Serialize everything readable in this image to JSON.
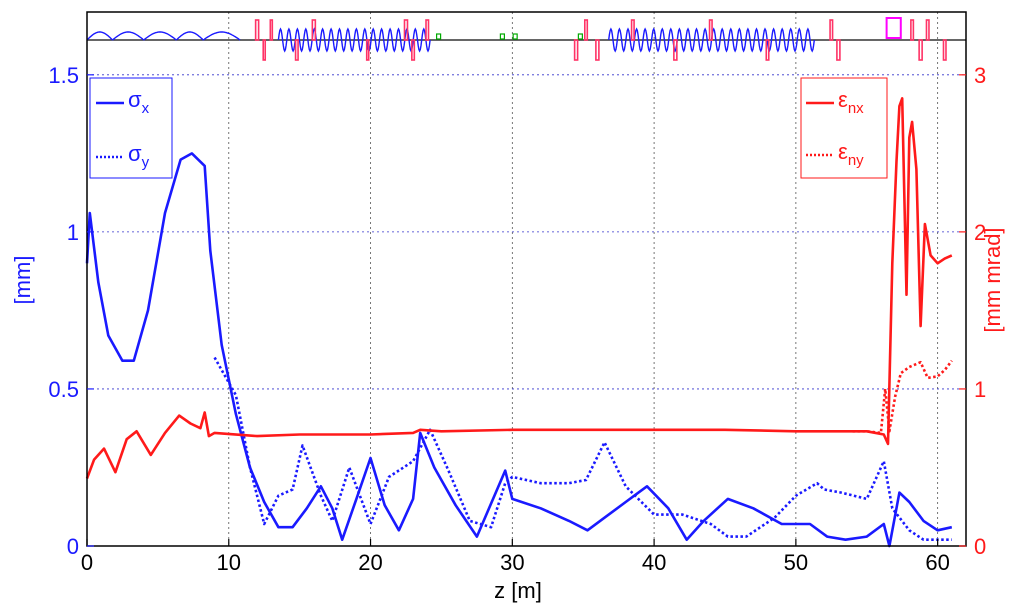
{
  "chart_data": {
    "type": "line",
    "xlabel": "z [m]",
    "ylabel_left": "[mm]",
    "ylabel_right": "[mm mrad]",
    "xlim": [
      0,
      62
    ],
    "ylim_left": [
      0,
      1.7
    ],
    "ylim_right": [
      0,
      3.4
    ],
    "x_ticks": [
      0,
      10,
      20,
      30,
      40,
      50,
      60
    ],
    "x_tick_labels": [
      "0",
      "10",
      "20",
      "30",
      "40",
      "50",
      "60"
    ],
    "y_left_ticks": [
      0,
      0.5,
      1,
      1.5
    ],
    "y_left_tick_labels": [
      "0",
      "0.5",
      "1",
      "1.5"
    ],
    "y_right_ticks": [
      0,
      1,
      2,
      3
    ],
    "y_right_tick_labels": [
      "0",
      "1",
      "2",
      "3"
    ],
    "grid": true,
    "colors": {
      "left_axis": "#1a1aff",
      "right_axis": "#ff1a1a",
      "grid": "#3333cc",
      "magnet": "#ff3366",
      "quad_marker": "#00aa00",
      "cavity": "#ff00ff"
    },
    "legend_left": {
      "placement": "top-left",
      "entries": [
        {
          "sym": "σ",
          "sub": "x",
          "style": "solid"
        },
        {
          "sym": "σ",
          "sub": "y",
          "style": "dotted"
        }
      ]
    },
    "legend_right": {
      "placement": "top-right",
      "entries": [
        {
          "sym": "ε",
          "sub": "nx",
          "style": "solid"
        },
        {
          "sym": "ε",
          "sub": "ny",
          "style": "dotted"
        }
      ]
    },
    "series": [
      {
        "axis": "left",
        "style": "solid",
        "color": "#1a1aff",
        "x": [
          0,
          0.2,
          0.8,
          1.5,
          2.5,
          3.3,
          4.3,
          5.5,
          6.6,
          7.4,
          8.3,
          8.7,
          9.5,
          10.5,
          11.5,
          12.5,
          13.5,
          14.5,
          15.5,
          16.5,
          17.3,
          18,
          19,
          20,
          21,
          22,
          23,
          23.5,
          24.5,
          26,
          27.5,
          29.5,
          30,
          32,
          34,
          35.3,
          36.5,
          38,
          39.5,
          41,
          42.3,
          43.5,
          45.2,
          47,
          49,
          51,
          52.2,
          53.5,
          55,
          56.2,
          56.6,
          57.3,
          58,
          59,
          60,
          61
        ],
        "y": [
          0.9,
          1.06,
          0.84,
          0.67,
          0.59,
          0.59,
          0.75,
          1.06,
          1.23,
          1.25,
          1.21,
          0.94,
          0.64,
          0.42,
          0.25,
          0.14,
          0.06,
          0.06,
          0.12,
          0.19,
          0.12,
          0.02,
          0.15,
          0.28,
          0.13,
          0.05,
          0.15,
          0.36,
          0.25,
          0.13,
          0.03,
          0.24,
          0.15,
          0.12,
          0.08,
          0.05,
          0.09,
          0.14,
          0.19,
          0.12,
          0.02,
          0.08,
          0.15,
          0.12,
          0.07,
          0.07,
          0.03,
          0.02,
          0.03,
          0.07,
          0.0,
          0.17,
          0.14,
          0.08,
          0.05,
          0.06
        ]
      },
      {
        "axis": "left",
        "style": "dotted",
        "color": "#1a1aff",
        "x": [
          9,
          10.5,
          11.5,
          12.5,
          13.5,
          14.5,
          15.2,
          16.5,
          17.3,
          18.5,
          20,
          21.3,
          23,
          24.2,
          25.5,
          27,
          28.5,
          29.5,
          30,
          32,
          34,
          35.2,
          36.5,
          38,
          40,
          42,
          44,
          45.2,
          46.5,
          48.5,
          50,
          51.5,
          52,
          53.2,
          55,
          56.2,
          56.8,
          58,
          59,
          60,
          61
        ],
        "y": [
          0.6,
          0.48,
          0.25,
          0.07,
          0.16,
          0.18,
          0.32,
          0.16,
          0.08,
          0.25,
          0.07,
          0.22,
          0.27,
          0.37,
          0.24,
          0.08,
          0.06,
          0.2,
          0.22,
          0.2,
          0.2,
          0.21,
          0.33,
          0.19,
          0.1,
          0.1,
          0.07,
          0.03,
          0.03,
          0.09,
          0.16,
          0.2,
          0.18,
          0.17,
          0.15,
          0.27,
          0.12,
          0.05,
          0.02,
          0.02,
          0.02
        ]
      },
      {
        "axis": "right",
        "style": "solid",
        "color": "#ff1a1a",
        "x": [
          0,
          0.5,
          1.2,
          2,
          2.8,
          3.5,
          4.5,
          5.5,
          6.5,
          7.3,
          8,
          8.3,
          8.6,
          9,
          12,
          15,
          20,
          23,
          23.5,
          25,
          30,
          35,
          40,
          45,
          50,
          55,
          56.2,
          56.5,
          56.8,
          57.1,
          57.3,
          57.5,
          57.8,
          58,
          58.2,
          58.5,
          58.8,
          59.1,
          59.5,
          60,
          60.5,
          61
        ],
        "y": [
          0.43,
          0.55,
          0.62,
          0.47,
          0.68,
          0.73,
          0.58,
          0.72,
          0.83,
          0.78,
          0.75,
          0.85,
          0.7,
          0.72,
          0.7,
          0.71,
          0.71,
          0.72,
          0.74,
          0.73,
          0.74,
          0.74,
          0.74,
          0.74,
          0.73,
          0.73,
          0.71,
          0.65,
          1.8,
          2.45,
          2.8,
          2.85,
          1.6,
          2.6,
          2.7,
          2.4,
          1.4,
          2.05,
          1.85,
          1.8,
          1.83,
          1.85
        ]
      },
      {
        "axis": "right",
        "style": "dotted",
        "color": "#ff1a1a",
        "x": [
          54,
          55,
          56,
          56.3,
          56.6,
          57,
          57.4,
          58,
          58.8,
          59.3,
          60,
          60.5,
          61
        ],
        "y": [
          0.73,
          0.73,
          0.72,
          1.0,
          0.73,
          0.95,
          1.1,
          1.14,
          1.17,
          1.07,
          1.08,
          1.12,
          1.18
        ]
      }
    ],
    "beamline": {
      "solenoid_ranges": [
        [
          0,
          1.8
        ],
        [
          1.8,
          4
        ],
        [
          4,
          6.3
        ],
        [
          6.3,
          8.2
        ],
        [
          8.2,
          10.8
        ]
      ],
      "undulator_ranges": [
        [
          13.5,
          24.2
        ],
        [
          36.8,
          51.3
        ]
      ],
      "magnets": [
        [
          12,
          3
        ],
        [
          12.5,
          2
        ],
        [
          13,
          2
        ],
        [
          14.8,
          2.5
        ],
        [
          16,
          3
        ],
        [
          19.8,
          2
        ],
        [
          22.5,
          3
        ],
        [
          23,
          2.5
        ],
        [
          24,
          2.5
        ],
        [
          34.5,
          3
        ],
        [
          35.2,
          2.5
        ],
        [
          36,
          3
        ],
        [
          38.5,
          2.5
        ],
        [
          41.5,
          3
        ],
        [
          44,
          2.5
        ],
        [
          48,
          2.5
        ],
        [
          52.5,
          2.5
        ],
        [
          53,
          3
        ],
        [
          58.2,
          2.5
        ],
        [
          58.8,
          3
        ],
        [
          59.3,
          2.5
        ],
        [
          60.5,
          2.5
        ]
      ],
      "quad_markers": [
        24.8,
        29.3,
        30.2,
        34.8
      ],
      "cavity": [
        56.4,
        57.4
      ]
    }
  }
}
